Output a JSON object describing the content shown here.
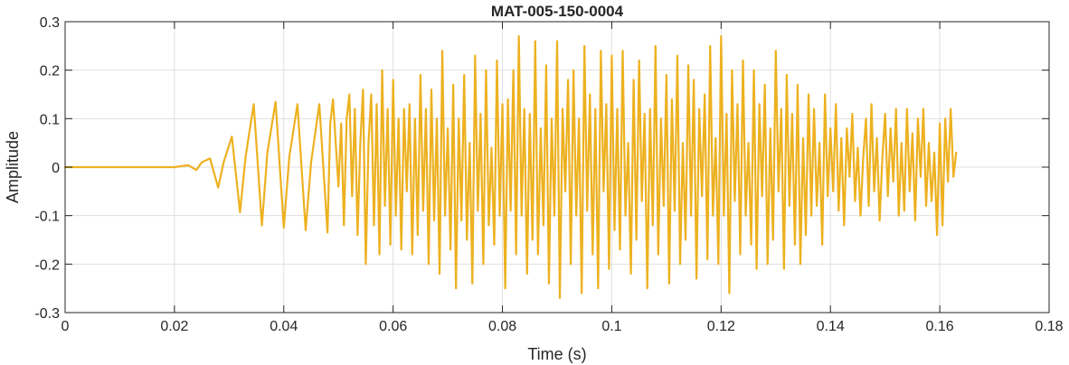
{
  "chart_data": {
    "type": "line",
    "title": "MAT-005-150-0004",
    "xlabel": "Time (s)",
    "ylabel": "Amplitude",
    "xlim": [
      0,
      0.18
    ],
    "ylim": [
      -0.3,
      0.3
    ],
    "xticks": [
      0,
      0.02,
      0.04,
      0.06,
      0.08,
      0.1,
      0.12,
      0.14,
      0.16,
      0.18
    ],
    "xtick_labels": [
      "0",
      "0.02",
      "0.04",
      "0.06",
      "0.08",
      "0.1",
      "0.12",
      "0.14",
      "0.16",
      "0.18"
    ],
    "yticks": [
      -0.3,
      -0.2,
      -0.1,
      0,
      0.1,
      0.2,
      0.3
    ],
    "ytick_labels": [
      "-0.3",
      "-0.2",
      "-0.1",
      "0",
      "0.1",
      "0.2",
      "0.3"
    ],
    "grid": true,
    "line_color": "#EDB120",
    "series": [
      {
        "x": [
          0,
          0.005,
          0.01,
          0.015,
          0.02,
          0.0225,
          0.024,
          0.025,
          0.0265,
          0.028,
          0.029,
          0.0305,
          0.032,
          0.033,
          0.0345,
          0.036,
          0.037,
          0.0385,
          0.04,
          0.041,
          0.0425,
          0.044,
          0.045,
          0.0465,
          0.048,
          0.0485,
          0.049,
          0.05,
          0.0505,
          0.051,
          0.0515,
          0.052,
          0.0525,
          0.053,
          0.0535,
          0.054,
          0.0545,
          0.055,
          0.0555,
          0.056,
          0.0565,
          0.057,
          0.0575,
          0.058,
          0.0585,
          0.059,
          0.0595,
          0.06,
          0.0605,
          0.061,
          0.0615,
          0.062,
          0.0625,
          0.063,
          0.0635,
          0.064,
          0.0645,
          0.065,
          0.0655,
          0.066,
          0.0665,
          0.067,
          0.0675,
          0.068,
          0.0685,
          0.069,
          0.0695,
          0.07,
          0.0705,
          0.071,
          0.0715,
          0.072,
          0.0725,
          0.073,
          0.0735,
          0.074,
          0.0745,
          0.075,
          0.0755,
          0.076,
          0.0765,
          0.077,
          0.0775,
          0.078,
          0.0785,
          0.079,
          0.0795,
          0.08,
          0.0805,
          0.081,
          0.0815,
          0.082,
          0.0825,
          0.083,
          0.0835,
          0.084,
          0.0845,
          0.085,
          0.0855,
          0.086,
          0.0865,
          0.087,
          0.0875,
          0.088,
          0.0885,
          0.089,
          0.0895,
          0.09,
          0.0905,
          0.091,
          0.0915,
          0.092,
          0.0925,
          0.093,
          0.0935,
          0.094,
          0.0945,
          0.095,
          0.0955,
          0.096,
          0.0965,
          0.097,
          0.0975,
          0.098,
          0.0985,
          0.099,
          0.0995,
          0.1,
          0.1005,
          0.101,
          0.1015,
          0.102,
          0.1025,
          0.103,
          0.1035,
          0.104,
          0.1045,
          0.105,
          0.1055,
          0.106,
          0.1065,
          0.107,
          0.1075,
          0.108,
          0.1085,
          0.109,
          0.1095,
          0.11,
          0.1105,
          0.111,
          0.1115,
          0.112,
          0.1125,
          0.113,
          0.1135,
          0.114,
          0.1145,
          0.115,
          0.1155,
          0.116,
          0.1165,
          0.117,
          0.1175,
          0.118,
          0.1185,
          0.119,
          0.1195,
          0.12,
          0.1205,
          0.121,
          0.1215,
          0.122,
          0.1225,
          0.123,
          0.1235,
          0.124,
          0.1245,
          0.125,
          0.1255,
          0.126,
          0.1265,
          0.127,
          0.1275,
          0.128,
          0.1285,
          0.129,
          0.1295,
          0.13,
          0.1305,
          0.131,
          0.1315,
          0.132,
          0.1325,
          0.133,
          0.1335,
          0.134,
          0.1345,
          0.135,
          0.1355,
          0.136,
          0.1365,
          0.137,
          0.1375,
          0.138,
          0.1385,
          0.139,
          0.1395,
          0.14,
          0.1405,
          0.141,
          0.1415,
          0.142,
          0.1425,
          0.143,
          0.1435,
          0.144,
          0.1445,
          0.145,
          0.1455,
          0.146,
          0.1465,
          0.147,
          0.1475,
          0.148,
          0.1485,
          0.149,
          0.1495,
          0.15,
          0.1505,
          0.151,
          0.1515,
          0.152,
          0.1525,
          0.153,
          0.1535,
          0.154,
          0.1545,
          0.155,
          0.1555,
          0.156,
          0.1565,
          0.157,
          0.1575,
          0.158,
          0.1585,
          0.159,
          0.1595,
          0.16,
          0.1605,
          0.161,
          0.1615,
          0.162,
          0.1625,
          0.163
        ],
        "y": [
          0,
          0.0,
          0.0,
          0.0,
          0.0,
          0.004,
          -0.006,
          0.01,
          0.018,
          -0.042,
          0.01,
          0.063,
          -0.093,
          0.02,
          0.13,
          -0.12,
          0.03,
          0.135,
          -0.125,
          0.02,
          0.13,
          -0.13,
          0.01,
          0.13,
          -0.135,
          0.09,
          0.14,
          -0.04,
          0.09,
          -0.12,
          0.1,
          0.15,
          -0.06,
          0.12,
          -0.14,
          0.05,
          0.16,
          -0.2,
          0.05,
          0.15,
          -0.12,
          0.13,
          -0.18,
          0.2,
          -0.08,
          0.12,
          -0.16,
          0.18,
          -0.1,
          0.1,
          -0.17,
          0.12,
          -0.05,
          0.13,
          -0.18,
          0.1,
          -0.14,
          0.19,
          -0.09,
          0.12,
          -0.2,
          0.16,
          -0.11,
          0.1,
          -0.22,
          0.24,
          -0.1,
          0.08,
          -0.17,
          0.17,
          -0.25,
          0.1,
          -0.11,
          0.19,
          -0.15,
          0.05,
          -0.24,
          0.23,
          -0.09,
          0.11,
          -0.2,
          0.2,
          -0.12,
          0.04,
          -0.16,
          0.22,
          -0.1,
          0.13,
          -0.25,
          0.14,
          -0.09,
          0.2,
          -0.18,
          0.27,
          -0.1,
          0.12,
          -0.22,
          0.11,
          -0.15,
          0.26,
          -0.18,
          0.08,
          -0.12,
          0.21,
          -0.24,
          0.1,
          -0.1,
          0.26,
          -0.27,
          0.12,
          -0.05,
          0.18,
          -0.2,
          0.2,
          -0.1,
          0.1,
          -0.26,
          0.25,
          -0.09,
          0.15,
          -0.18,
          0.12,
          -0.25,
          0.24,
          -0.05,
          0.13,
          -0.21,
          0.23,
          -0.13,
          0.12,
          -0.17,
          0.24,
          -0.1,
          0.05,
          -0.22,
          0.18,
          -0.15,
          0.22,
          -0.07,
          0.11,
          -0.25,
          0.12,
          -0.12,
          0.25,
          -0.18,
          0.1,
          -0.08,
          0.19,
          -0.24,
          0.14,
          -0.09,
          0.23,
          -0.2,
          0.05,
          -0.15,
          0.21,
          -0.1,
          0.18,
          -0.23,
          0.12,
          -0.06,
          0.15,
          -0.19,
          0.25,
          -0.1,
          0.06,
          -0.2,
          0.27,
          -0.1,
          0.11,
          -0.26,
          0.2,
          -0.07,
          0.13,
          -0.18,
          0.22,
          -0.1,
          0.05,
          -0.16,
          0.2,
          -0.21,
          0.13,
          -0.06,
          0.17,
          -0.2,
          0.08,
          -0.15,
          0.24,
          -0.05,
          0.12,
          -0.21,
          0.19,
          -0.08,
          0.11,
          -0.16,
          0.17,
          -0.2,
          0.06,
          -0.14,
          0.15,
          -0.1,
          0.12,
          -0.08,
          0.05,
          -0.16,
          0.15,
          -0.06,
          0.08,
          -0.05,
          0.13,
          -0.09,
          0.06,
          -0.12,
          0.08,
          -0.02,
          0.11,
          -0.07,
          0.04,
          -0.1,
          0.02,
          0.1,
          -0.08,
          0.13,
          -0.05,
          0.06,
          -0.11,
          0.02,
          0.11,
          -0.06,
          0.08,
          -0.03,
          0.12,
          -0.1,
          0.05,
          -0.09,
          0.12,
          -0.05,
          0.07,
          -0.11,
          0.1,
          -0.02,
          0.12,
          -0.08,
          0.05,
          -0.07,
          0.03,
          -0.14,
          0.09,
          -0.12,
          0.1,
          -0.03,
          0.12,
          -0.02,
          0.03
        ]
      }
    ]
  }
}
